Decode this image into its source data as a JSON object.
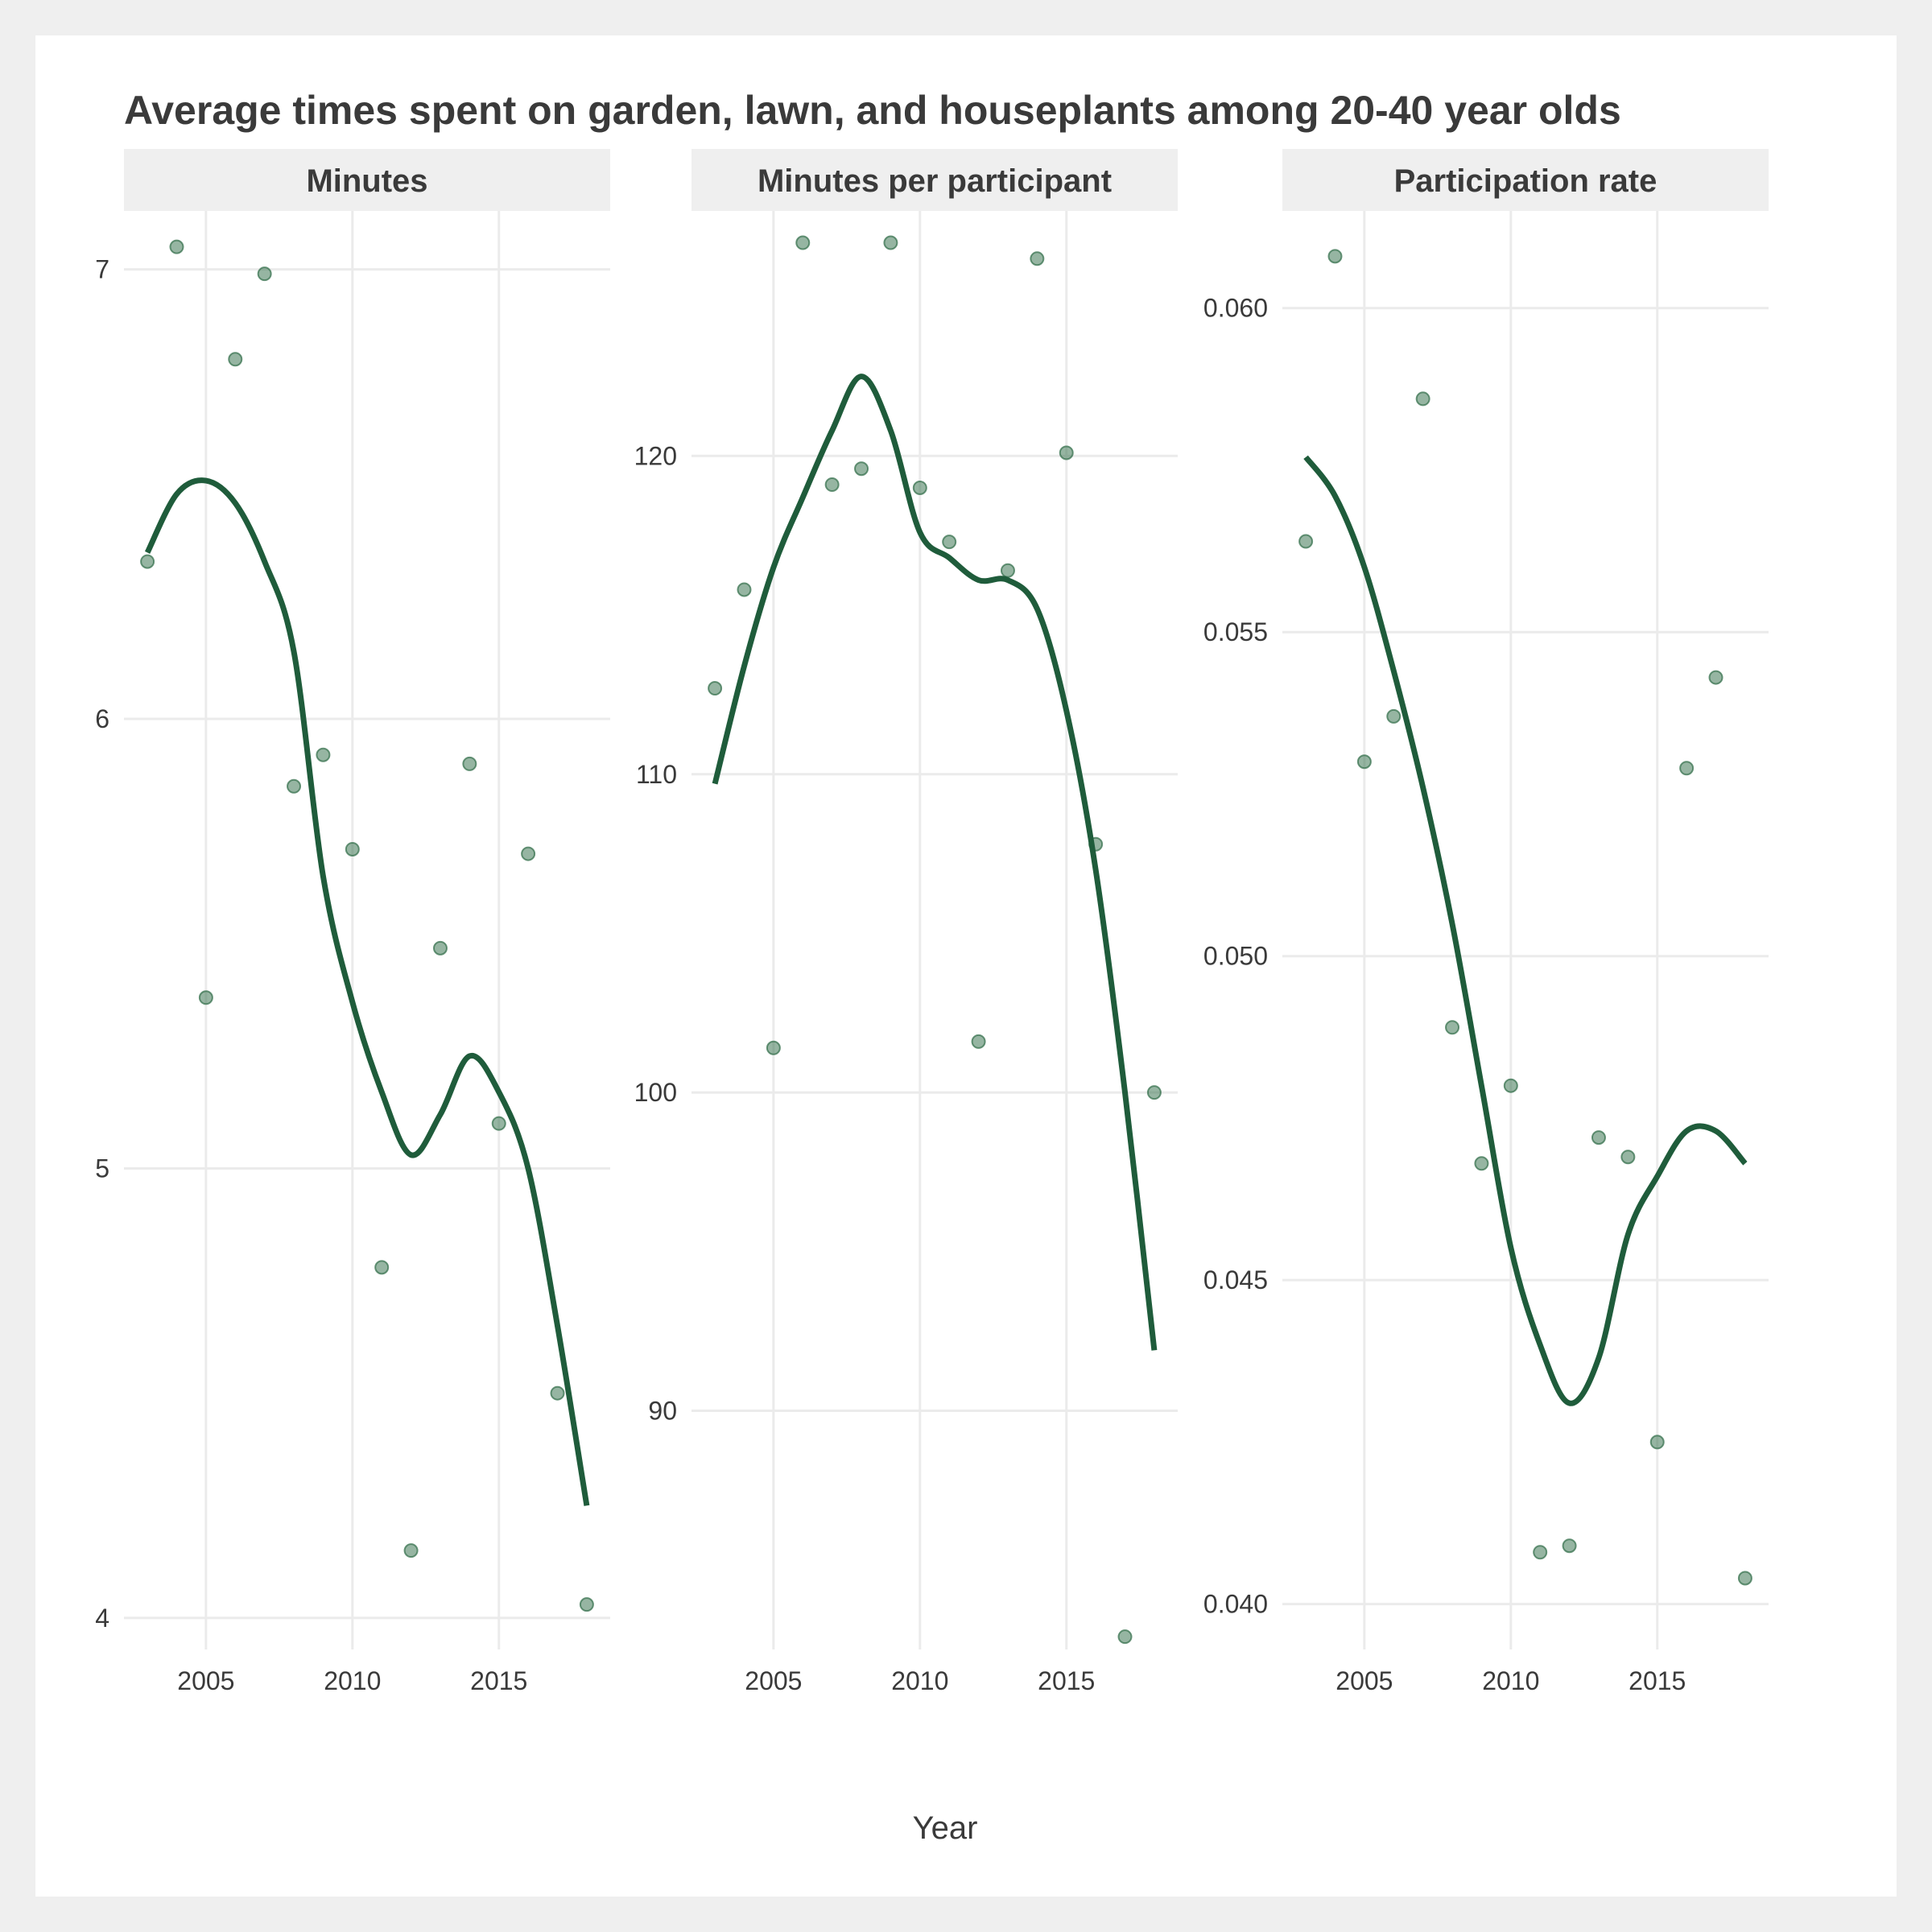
{
  "chart_data": {
    "type": "scatter",
    "title": "Average times spent on garden, lawn, and houseplants among 20-40 year olds",
    "xlabel": "Year",
    "x_ticks": [
      2005,
      2010,
      2015
    ],
    "xlim": [
      2002.2,
      2018.8
    ],
    "grid": true,
    "colors": {
      "points": "#2e6b46",
      "line": "#1f5c3b",
      "strip_bg": "#efefef",
      "grid": "#ebebeb"
    },
    "panels": [
      {
        "name": "Minutes",
        "ylim": [
          3.93,
          7.13
        ],
        "y_ticks": [
          4,
          5,
          6,
          7
        ],
        "y_tick_labels": [
          "4",
          "5",
          "6",
          "7"
        ],
        "points": [
          {
            "x": 2003,
            "y": 6.35
          },
          {
            "x": 2004,
            "y": 7.05
          },
          {
            "x": 2005,
            "y": 5.38
          },
          {
            "x": 2006,
            "y": 6.8
          },
          {
            "x": 2007,
            "y": 6.99
          },
          {
            "x": 2008,
            "y": 5.85
          },
          {
            "x": 2009,
            "y": 5.92
          },
          {
            "x": 2010,
            "y": 5.71
          },
          {
            "x": 2011,
            "y": 4.78
          },
          {
            "x": 2012,
            "y": 4.15
          },
          {
            "x": 2013,
            "y": 5.49
          },
          {
            "x": 2014,
            "y": 5.9
          },
          {
            "x": 2015,
            "y": 5.1
          },
          {
            "x": 2016,
            "y": 5.7
          },
          {
            "x": 2017,
            "y": 4.5
          },
          {
            "x": 2018,
            "y": 4.03
          }
        ],
        "smooth": [
          {
            "x": 2003,
            "y": 6.37
          },
          {
            "x": 2004,
            "y": 6.5
          },
          {
            "x": 2005,
            "y": 6.53
          },
          {
            "x": 2006,
            "y": 6.48
          },
          {
            "x": 2007,
            "y": 6.35
          },
          {
            "x": 2008,
            "y": 6.15
          },
          {
            "x": 2009,
            "y": 5.65
          },
          {
            "x": 2010,
            "y": 5.37
          },
          {
            "x": 2011,
            "y": 5.17
          },
          {
            "x": 2012,
            "y": 5.03
          },
          {
            "x": 2013,
            "y": 5.12
          },
          {
            "x": 2014,
            "y": 5.25
          },
          {
            "x": 2015,
            "y": 5.17
          },
          {
            "x": 2016,
            "y": 5.0
          },
          {
            "x": 2017,
            "y": 4.65
          },
          {
            "x": 2018,
            "y": 4.25
          }
        ]
      },
      {
        "name": "Minutes per participant",
        "ylim": [
          82.5,
          127.7
        ],
        "y_ticks": [
          90,
          100,
          110,
          120
        ],
        "y_tick_labels": [
          "90",
          "100",
          "110",
          "120"
        ],
        "points": [
          {
            "x": 2003,
            "y": 112.7
          },
          {
            "x": 2004,
            "y": 115.8
          },
          {
            "x": 2005,
            "y": 101.4
          },
          {
            "x": 2006,
            "y": 126.7
          },
          {
            "x": 2007,
            "y": 119.1
          },
          {
            "x": 2008,
            "y": 119.6
          },
          {
            "x": 2009,
            "y": 126.7
          },
          {
            "x": 2010,
            "y": 119.0
          },
          {
            "x": 2011,
            "y": 117.3
          },
          {
            "x": 2012,
            "y": 101.6
          },
          {
            "x": 2013,
            "y": 116.4
          },
          {
            "x": 2014,
            "y": 126.2
          },
          {
            "x": 2015,
            "y": 120.1
          },
          {
            "x": 2016,
            "y": 107.8
          },
          {
            "x": 2017,
            "y": 82.9
          },
          {
            "x": 2018,
            "y": 100.0
          }
        ],
        "smooth": [
          {
            "x": 2003,
            "y": 109.7
          },
          {
            "x": 2004,
            "y": 113.4
          },
          {
            "x": 2005,
            "y": 116.5
          },
          {
            "x": 2006,
            "y": 118.7
          },
          {
            "x": 2007,
            "y": 120.8
          },
          {
            "x": 2008,
            "y": 122.5
          },
          {
            "x": 2009,
            "y": 120.8
          },
          {
            "x": 2010,
            "y": 117.6
          },
          {
            "x": 2011,
            "y": 116.8
          },
          {
            "x": 2012,
            "y": 116.1
          },
          {
            "x": 2013,
            "y": 116.1
          },
          {
            "x": 2014,
            "y": 115.2
          },
          {
            "x": 2015,
            "y": 112.0
          },
          {
            "x": 2016,
            "y": 107.0
          },
          {
            "x": 2017,
            "y": 100.0
          },
          {
            "x": 2018,
            "y": 91.9
          }
        ]
      },
      {
        "name": "Participation rate",
        "ylim": [
          0.0393,
          0.0615
        ],
        "y_ticks": [
          0.04,
          0.045,
          0.05,
          0.055,
          0.06
        ],
        "y_tick_labels": [
          "0.040",
          "0.045",
          "0.050",
          "0.055",
          "0.060"
        ],
        "points": [
          {
            "x": 2003,
            "y": 0.0564
          },
          {
            "x": 2004,
            "y": 0.0608
          },
          {
            "x": 2005,
            "y": 0.053
          },
          {
            "x": 2006,
            "y": 0.0537
          },
          {
            "x": 2007,
            "y": 0.0586
          },
          {
            "x": 2008,
            "y": 0.0489
          },
          {
            "x": 2009,
            "y": 0.0468
          },
          {
            "x": 2010,
            "y": 0.048
          },
          {
            "x": 2011,
            "y": 0.0408
          },
          {
            "x": 2012,
            "y": 0.0409
          },
          {
            "x": 2013,
            "y": 0.0472
          },
          {
            "x": 2014,
            "y": 0.0469
          },
          {
            "x": 2015,
            "y": 0.0425
          },
          {
            "x": 2016,
            "y": 0.0529
          },
          {
            "x": 2017,
            "y": 0.0543
          },
          {
            "x": 2018,
            "y": 0.0404
          }
        ],
        "smooth": [
          {
            "x": 2003,
            "y": 0.0577
          },
          {
            "x": 2004,
            "y": 0.0571
          },
          {
            "x": 2005,
            "y": 0.056
          },
          {
            "x": 2006,
            "y": 0.0544
          },
          {
            "x": 2007,
            "y": 0.0526
          },
          {
            "x": 2008,
            "y": 0.0505
          },
          {
            "x": 2009,
            "y": 0.048
          },
          {
            "x": 2010,
            "y": 0.0455
          },
          {
            "x": 2011,
            "y": 0.044
          },
          {
            "x": 2012,
            "y": 0.0431
          },
          {
            "x": 2013,
            "y": 0.0438
          },
          {
            "x": 2014,
            "y": 0.0457
          },
          {
            "x": 2015,
            "y": 0.0466
          },
          {
            "x": 2016,
            "y": 0.0473
          },
          {
            "x": 2017,
            "y": 0.0473
          },
          {
            "x": 2018,
            "y": 0.0468
          }
        ]
      }
    ]
  }
}
